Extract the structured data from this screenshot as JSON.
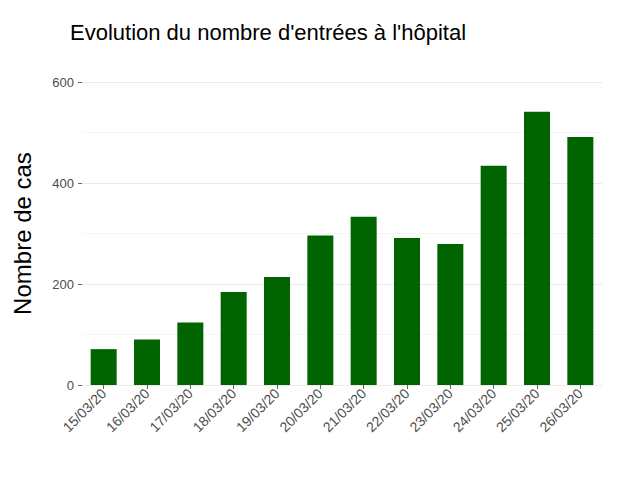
{
  "chart_data": {
    "type": "bar",
    "title": "Evolution du nombre d'entrées à l'hôpital",
    "y_label": "Nombre de cas",
    "categories": [
      "15/03/20",
      "16/03/20",
      "17/03/20",
      "18/03/20",
      "19/03/20",
      "20/03/20",
      "21/03/20",
      "22/03/20",
      "23/03/20",
      "24/03/20",
      "25/03/20",
      "26/03/20"
    ],
    "values": [
      71,
      90,
      124,
      184,
      214,
      296,
      333,
      291,
      279,
      434,
      541,
      491
    ],
    "color": "#006400",
    "ylim": [
      0,
      600
    ],
    "yticks": [
      0,
      200,
      400,
      600
    ],
    "grid": true
  }
}
